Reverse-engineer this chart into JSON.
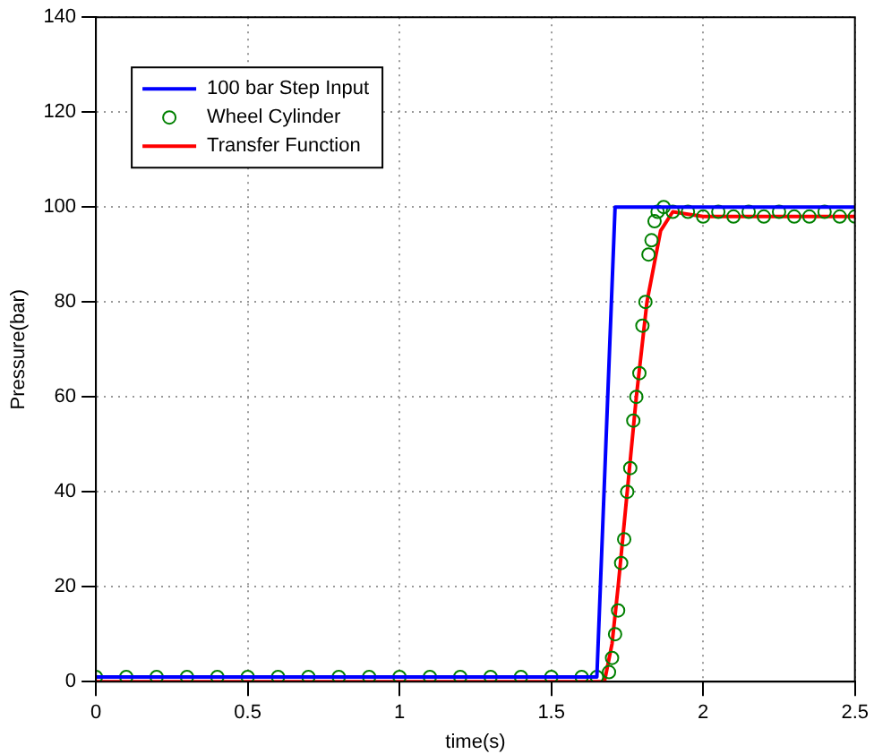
{
  "chart_data": {
    "type": "line",
    "xlabel": "time(s)",
    "ylabel": "Pressure(bar)",
    "xlim": [
      0,
      2.5
    ],
    "xticks": [
      0,
      0.5,
      1,
      1.5,
      2,
      2.5
    ],
    "ylim": [
      0,
      140
    ],
    "yticks": [
      0,
      20,
      40,
      60,
      80,
      100,
      120,
      140
    ],
    "grid": true,
    "legend": "top left",
    "series": [
      {
        "name": "100 bar Step Input",
        "color": "#0000ff",
        "marker": "none",
        "x": [
          0,
          1.65,
          1.71,
          2.5
        ],
        "values": [
          1,
          1,
          100,
          100
        ]
      },
      {
        "name": "Wheel Cylinder",
        "type": "scatter",
        "color": "#008000",
        "marker": "circle",
        "x": [
          0,
          0.1,
          0.2,
          0.3,
          0.4,
          0.5,
          0.6,
          0.7,
          0.8,
          0.9,
          1,
          1.1,
          1.2,
          1.3,
          1.4,
          1.5,
          1.6,
          1.65,
          1.69,
          1.7,
          1.71,
          1.72,
          1.73,
          1.74,
          1.75,
          1.76,
          1.77,
          1.78,
          1.79,
          1.8,
          1.81,
          1.82,
          1.83,
          1.84,
          1.85,
          1.87,
          1.9,
          1.95,
          2,
          2.05,
          2.1,
          2.15,
          2.2,
          2.25,
          2.3,
          2.35,
          2.4,
          2.45,
          2.5
        ],
        "values": [
          1,
          1,
          1,
          1,
          1,
          1,
          1,
          1,
          1,
          1,
          1,
          1,
          1,
          1,
          1,
          1,
          1,
          1,
          2,
          5,
          10,
          15,
          25,
          30,
          40,
          45,
          55,
          60,
          65,
          75,
          80,
          90,
          93,
          97,
          99,
          100,
          99,
          99,
          98,
          99,
          98,
          99,
          98,
          99,
          98,
          98,
          99,
          98,
          98
        ]
      },
      {
        "name": "Transfer Function",
        "color": "#ff0000",
        "marker": "none",
        "x": [
          0,
          1.675,
          1.7,
          1.72,
          1.75,
          1.78,
          1.815,
          1.86,
          1.9,
          2,
          2.5
        ],
        "values": [
          0,
          0,
          8,
          20,
          40,
          60,
          80,
          95,
          99,
          98,
          98
        ]
      }
    ]
  }
}
